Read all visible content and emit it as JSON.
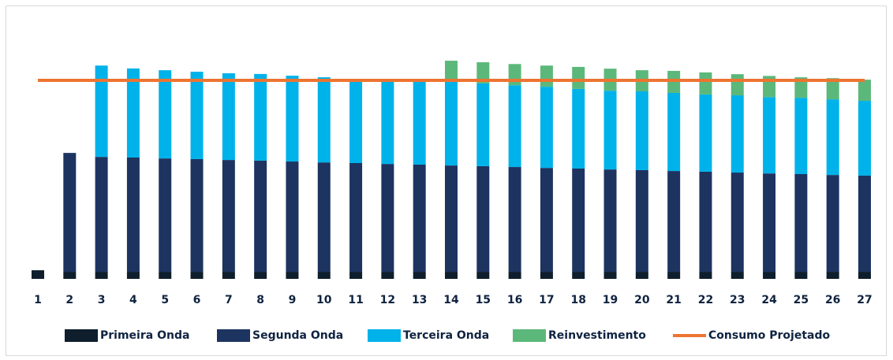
{
  "chart_data": {
    "type": "stacked_bar",
    "categories": [
      "1",
      "2",
      "3",
      "4",
      "5",
      "6",
      "7",
      "8",
      "9",
      "10",
      "11",
      "12",
      "13",
      "14",
      "15",
      "16",
      "17",
      "18",
      "19",
      "20",
      "21",
      "22",
      "23",
      "24",
      "25",
      "26",
      "27"
    ],
    "ylim": [
      0,
      100
    ],
    "series": [
      {
        "name": "Primeira Onda",
        "color": "#0e1e2c",
        "values": [
          3.9,
          3.2,
          3.2,
          3.2,
          3.2,
          3.2,
          3.2,
          3.2,
          3.2,
          3.2,
          3.2,
          3.2,
          3.2,
          3.2,
          3.2,
          3.2,
          3.2,
          3.2,
          3.2,
          3.2,
          3.2,
          3.2,
          3.2,
          3.2,
          3.2,
          3.2,
          3.2
        ]
      },
      {
        "name": "Segunda Onda",
        "color": "#1d3461",
        "values": [
          0,
          53.9,
          52.1,
          51.8,
          51.4,
          51.1,
          50.7,
          50.4,
          50.0,
          49.6,
          49.3,
          48.9,
          48.6,
          48.2,
          47.9,
          47.5,
          47.1,
          46.8,
          46.4,
          46.1,
          45.7,
          45.4,
          45.0,
          44.6,
          44.3,
          43.9,
          43.6
        ]
      },
      {
        "name": "Terceira Onda",
        "color": "#00b2ea",
        "values": [
          0,
          0,
          41.4,
          40.4,
          40.0,
          39.6,
          39.3,
          39.3,
          38.9,
          38.6,
          38.2,
          37.5,
          37.5,
          37.9,
          37.5,
          37.1,
          36.8,
          36.1,
          35.7,
          35.7,
          35.4,
          35.0,
          35.0,
          34.6,
          34.6,
          34.3,
          33.9
        ]
      },
      {
        "name": "Reinvestimento",
        "color": "#5cb87a",
        "values": [
          0,
          0,
          0,
          0,
          0,
          0,
          0,
          0,
          0,
          0,
          0,
          0,
          0,
          9.6,
          9.6,
          9.6,
          9.6,
          10.0,
          10.0,
          9.6,
          10.0,
          10.0,
          9.6,
          9.6,
          9.3,
          9.6,
          9.6
        ]
      }
    ],
    "line": {
      "name": "Consumo Projetado",
      "color": "#ed7431",
      "values": [
        90,
        90,
        90,
        90,
        90,
        90,
        90,
        90,
        90,
        90,
        90,
        90,
        90,
        90,
        90,
        90,
        90,
        90,
        90,
        90,
        90,
        90,
        90,
        90,
        90,
        90,
        90
      ]
    },
    "legend": "bottom"
  }
}
